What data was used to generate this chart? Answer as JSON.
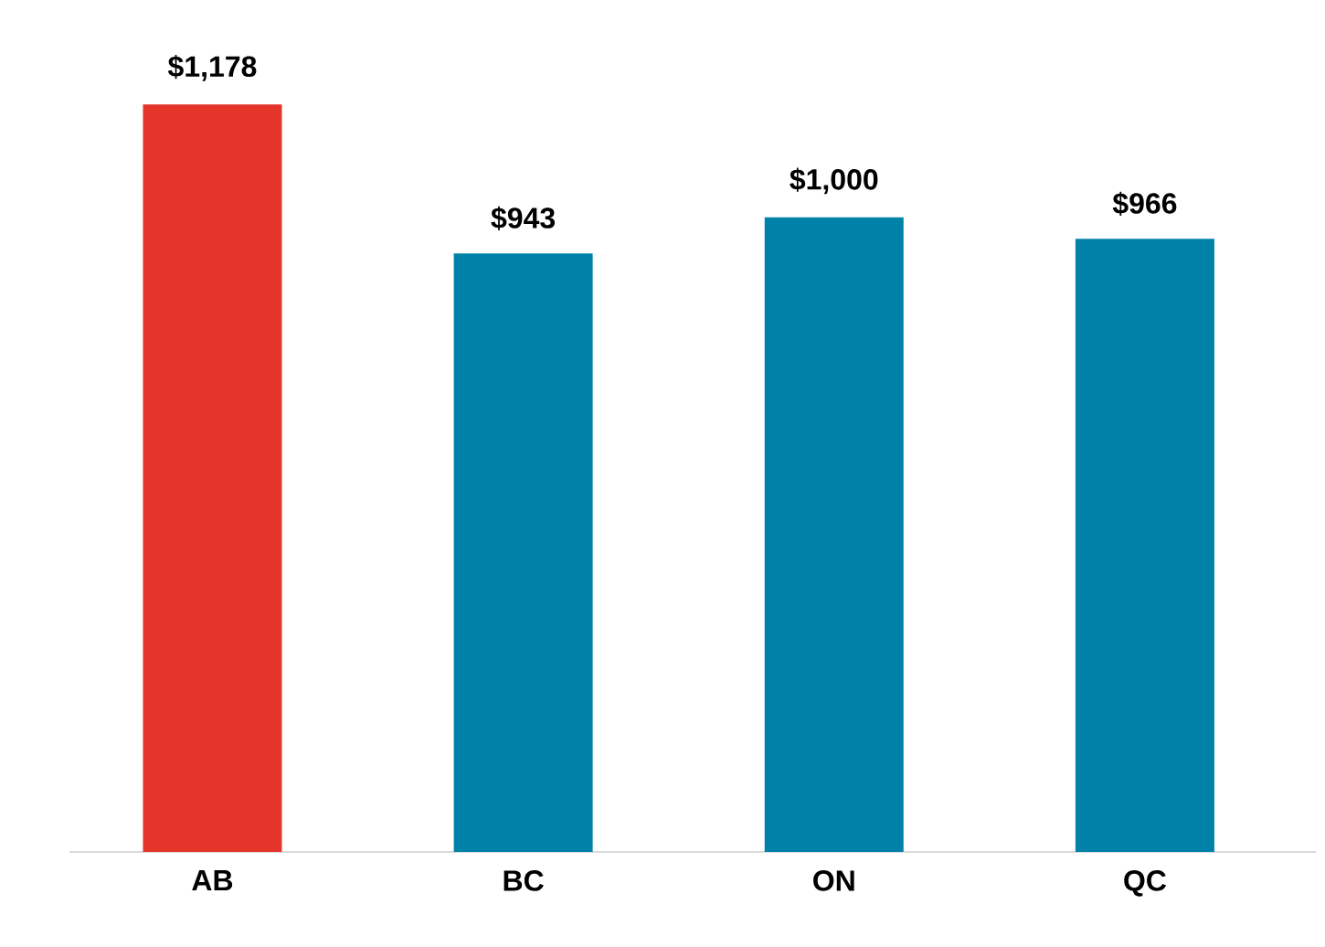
{
  "chart_data": {
    "type": "bar",
    "categories": [
      "AB",
      "BC",
      "ON",
      "QC"
    ],
    "values": [
      1178,
      943,
      1000,
      966
    ],
    "colors": [
      "#e5352b",
      "#0081a7",
      "#0081a7",
      "#0081a7"
    ],
    "data_labels": true,
    "value_labels": [
      "$1,178",
      "$943",
      "$1,000",
      "$966"
    ],
    "tick_labels": "x"
  }
}
